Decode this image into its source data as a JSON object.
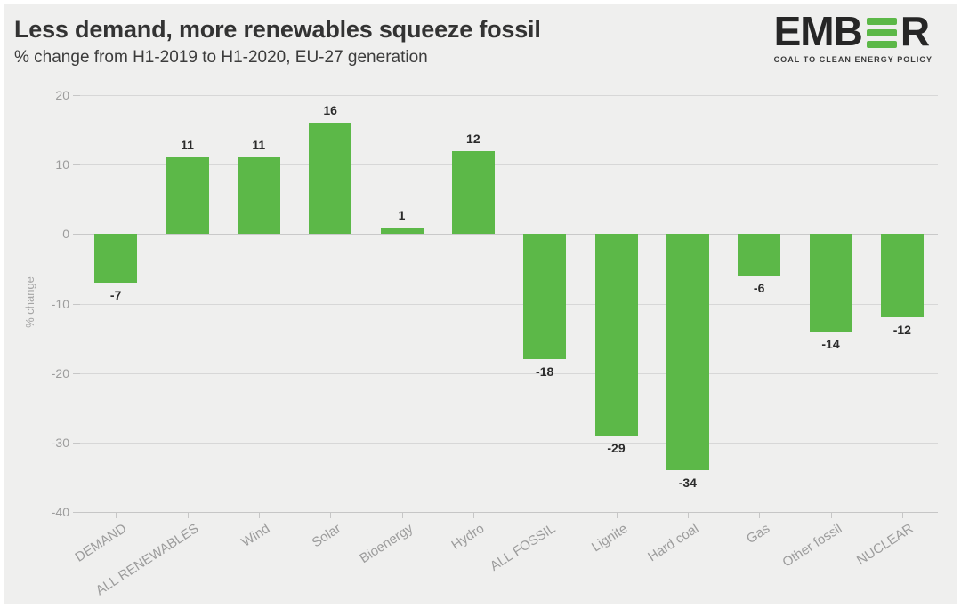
{
  "header": {
    "title_note": "bound from chart_data"
  },
  "logo": {
    "text_start": "EMB",
    "text_end": "R",
    "tagline": "COAL TO CLEAN ENERGY POLICY",
    "bar_icon": "three-green-bars-icon",
    "green": "#5cb848",
    "dark": "#262626"
  },
  "chart_data": {
    "type": "bar",
    "title": "Less demand, more renewables squeeze fossil",
    "subtitle": "% change from H1-2019 to H1-2020, EU-27 generation",
    "categories": [
      "DEMAND",
      "ALL RENEWABLES",
      "Wind",
      "Solar",
      "Bioenergy",
      "Hydro",
      "ALL FOSSIL",
      "Lignite",
      "Hard coal",
      "Gas",
      "Other fossil",
      "NUCLEAR"
    ],
    "values": [
      -7,
      11,
      11,
      16,
      1,
      12,
      -18,
      -29,
      -34,
      -6,
      -14,
      -12
    ],
    "xlabel": "",
    "ylabel": "% change",
    "ylim": [
      -40,
      20
    ],
    "yticks": [
      20,
      10,
      0,
      -10,
      -20,
      -30,
      -40
    ],
    "grid": true,
    "legend": "none",
    "bar_color": "#5cb848",
    "value_labels": true,
    "background": "#efefee",
    "gridline_color": "#d7d7d7",
    "tick_label_color": "#9c9c9c"
  }
}
